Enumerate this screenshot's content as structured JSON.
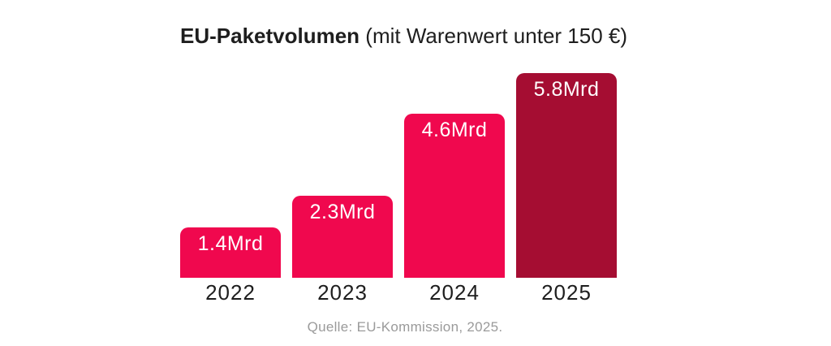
{
  "page": {
    "background_color": "#ffffff"
  },
  "chart_data": {
    "type": "bar",
    "title": "EU-Paketvolumen",
    "title_suffix": " (mit Warenwert unter 150 €)",
    "categories": [
      "2022",
      "2023",
      "2024",
      "2025"
    ],
    "values": [
      1.4,
      2.3,
      4.6,
      5.8
    ],
    "value_labels": [
      "1.4Mrd",
      "2.3Mrd",
      "4.6Mrd",
      "5.8Mrd"
    ],
    "unit": "Mrd",
    "ylim": [
      0,
      5.8
    ],
    "grid": false,
    "legend": false,
    "xlabel": "",
    "ylabel": "",
    "bar_colors": [
      "#F0084E",
      "#F0084E",
      "#F0084E",
      "#A50D32"
    ],
    "value_label_color": "#ffffff",
    "axis_text_color": "#1e1e1e",
    "source": "Quelle: EU-Kommission, 2025.",
    "source_color": "#9a9a9a"
  }
}
